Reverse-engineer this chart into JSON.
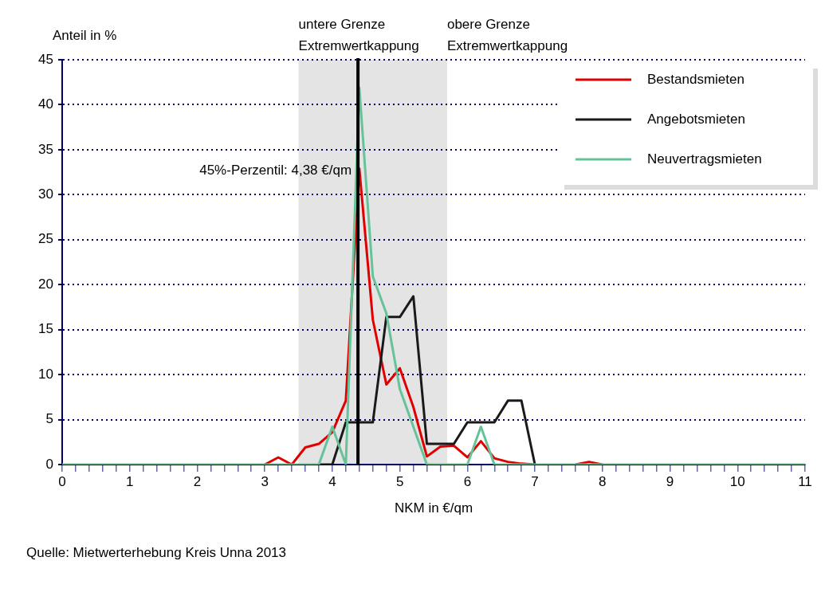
{
  "chart_data": {
    "type": "line",
    "xlabel": "NKM in €/qm",
    "ylabel": "Anteil in %",
    "x": [
      0,
      0.2,
      0.4,
      0.6,
      0.8,
      1,
      1.2,
      1.4,
      1.6,
      1.8,
      2,
      2.2,
      2.4,
      2.6,
      2.8,
      3,
      3.2,
      3.4,
      3.6,
      3.8,
      4,
      4.2,
      4.4,
      4.6,
      4.8,
      5,
      5.2,
      5.4,
      5.6,
      5.8,
      6,
      6.2,
      6.4,
      6.6,
      6.8,
      7,
      7.2,
      7.4,
      7.6,
      7.8,
      8,
      8.2,
      8.4,
      8.6,
      8.8,
      9,
      9.2,
      9.4,
      9.6,
      9.8,
      10,
      10.2,
      10.4,
      10.6,
      10.8,
      11
    ],
    "series": [
      {
        "name": "Bestandsmieten",
        "color": "#e00000",
        "values": [
          null,
          null,
          null,
          null,
          null,
          null,
          null,
          null,
          null,
          null,
          null,
          null,
          null,
          null,
          null,
          0,
          0.8,
          0,
          1.9,
          2.3,
          3.6,
          7.1,
          32.9,
          16.1,
          8.9,
          10.7,
          6.4,
          0.9,
          2.0,
          2.1,
          0.8,
          2.6,
          0.7,
          0.3,
          0.1,
          0,
          null,
          null,
          0,
          0.3,
          0,
          null,
          null,
          null,
          null,
          null,
          null,
          null,
          null,
          null,
          null,
          null,
          null,
          null,
          null,
          null
        ]
      },
      {
        "name": "Angebotsmieten",
        "color": "#1a1a1a",
        "values": [
          null,
          null,
          null,
          null,
          null,
          null,
          null,
          null,
          null,
          null,
          null,
          null,
          null,
          null,
          null,
          null,
          null,
          null,
          null,
          0,
          0,
          4.7,
          4.7,
          4.7,
          16.4,
          16.4,
          18.7,
          2.3,
          2.3,
          2.3,
          4.7,
          4.7,
          4.7,
          7.1,
          7.1,
          0,
          null,
          null,
          null,
          null,
          null,
          null,
          null,
          null,
          null,
          null,
          null,
          null,
          null,
          null,
          null,
          null,
          null,
          null,
          null,
          null
        ]
      },
      {
        "name": "Neuvertragsmieten",
        "color": "#66c299",
        "values": [
          0,
          0,
          0,
          0,
          0,
          0,
          0,
          0,
          0,
          0,
          0,
          0,
          0,
          0,
          0,
          0,
          0,
          0,
          0,
          0,
          4.2,
          0,
          41.9,
          20.9,
          16.8,
          8.4,
          4.2,
          0,
          0,
          0,
          0,
          4.2,
          0,
          0,
          0,
          0,
          0,
          0,
          0,
          0,
          0,
          0,
          0,
          0,
          0,
          0,
          0,
          0,
          0,
          0,
          0,
          0,
          0,
          0,
          0,
          0
        ]
      }
    ],
    "xlim": [
      0,
      11
    ],
    "xticks": [
      0,
      {
        "value": 0.2,
        "label": null
      },
      {
        "value": 0.4,
        "label": null
      },
      {
        "value": 0.6,
        "label": null
      },
      {
        "value": 0.8,
        "label": null
      },
      1,
      {
        "value": 1.2,
        "label": null
      },
      {
        "value": 1.4,
        "label": null
      },
      {
        "value": 1.6,
        "label": null
      },
      {
        "value": 1.8,
        "label": null
      },
      2,
      {
        "value": 2.2,
        "label": null
      },
      {
        "value": 2.4,
        "label": null
      },
      {
        "value": 2.6,
        "label": null
      },
      {
        "value": 2.8,
        "label": null
      },
      3,
      {
        "value": 3.2,
        "label": null
      },
      {
        "value": 3.4,
        "label": null
      },
      {
        "value": 3.6,
        "label": null
      },
      {
        "value": 3.8,
        "label": null
      },
      4,
      {
        "value": 4.2,
        "label": null
      },
      {
        "value": 4.4,
        "label": null
      },
      {
        "value": 4.6,
        "label": null
      },
      {
        "value": 4.8,
        "label": null
      },
      5,
      {
        "value": 5.2,
        "label": null
      },
      {
        "value": 5.4,
        "label": null
      },
      {
        "value": 5.6,
        "label": null
      },
      {
        "value": 5.8,
        "label": null
      },
      6,
      {
        "value": 6.2,
        "label": null
      },
      {
        "value": 6.4,
        "label": null
      },
      {
        "value": 6.6,
        "label": null
      },
      {
        "value": 6.8,
        "label": null
      },
      7,
      {
        "value": 7.2,
        "label": null
      },
      {
        "value": 7.4,
        "label": null
      },
      {
        "value": 7.6,
        "label": null
      },
      {
        "value": 7.8,
        "label": null
      },
      8,
      {
        "value": 8.2,
        "label": null
      },
      {
        "value": 8.4,
        "label": null
      },
      {
        "value": 8.6,
        "label": null
      },
      {
        "value": 8.8,
        "label": null
      },
      9,
      {
        "value": 9.2,
        "label": null
      },
      {
        "value": 9.4,
        "label": null
      },
      {
        "value": 9.6,
        "label": null
      },
      {
        "value": 9.8,
        "label": null
      },
      10,
      {
        "value": 10.2,
        "label": null
      },
      {
        "value": 10.4,
        "label": null
      },
      {
        "value": 10.6,
        "label": null
      },
      {
        "value": 10.8,
        "label": null
      },
      11
    ],
    "ylim": [
      0,
      45
    ],
    "yticks": [
      0,
      5,
      10,
      15,
      20,
      25,
      30,
      35,
      40,
      45
    ],
    "grid": "y",
    "legend": "top right",
    "marker": "none",
    "line_style": "solid",
    "bands": [
      {
        "axis": "x",
        "from": 3.5,
        "to": 5.7,
        "color": "#e4e4e4"
      }
    ],
    "ref_lines": [
      {
        "axis": "x",
        "value": 4.38,
        "label": "45%-Perzentil: 4,38 €/qm",
        "color": "#000000",
        "line_style": "solid"
      }
    ],
    "annotations": [
      {
        "text": "untere Grenze\nExtremwertkappung",
        "x": 3.5,
        "y": 45
      },
      {
        "text": "obere Grenze\nExtremwertkappung",
        "x": 5.7,
        "y": 45
      },
      "Quelle: Mietwerterhebung Kreis Unna 2013"
    ]
  }
}
